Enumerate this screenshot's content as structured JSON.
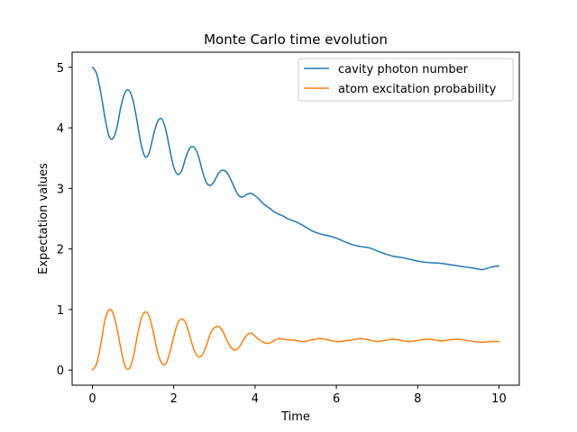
{
  "chart_data": {
    "type": "line",
    "title": "Monte Carlo time evolution",
    "xlabel": "Time",
    "ylabel": "Expectation values",
    "xlim": [
      -0.5,
      10.5
    ],
    "ylim": [
      -0.25,
      5.25
    ],
    "xticks": [
      0,
      2,
      4,
      6,
      8,
      10
    ],
    "yticks": [
      0,
      1,
      2,
      3,
      4,
      5
    ],
    "grid": false,
    "legend_position": "top-right",
    "series": [
      {
        "name": "cavity photon number",
        "color": "#1f77b4",
        "x": [
          0.0,
          0.1,
          0.2,
          0.3,
          0.4,
          0.5,
          0.6,
          0.7,
          0.8,
          0.9,
          1.0,
          1.1,
          1.2,
          1.3,
          1.4,
          1.5,
          1.6,
          1.7,
          1.8,
          1.9,
          2.0,
          2.1,
          2.2,
          2.3,
          2.4,
          2.5,
          2.6,
          2.7,
          2.8,
          2.9,
          3.0,
          3.1,
          3.2,
          3.3,
          3.4,
          3.5,
          3.6,
          3.7,
          3.8,
          3.9,
          4.0,
          4.1,
          4.2,
          4.3,
          4.4,
          4.5,
          4.6,
          4.7,
          4.8,
          5.0,
          5.2,
          5.4,
          5.6,
          5.8,
          6.0,
          6.2,
          6.4,
          6.6,
          6.8,
          7.0,
          7.2,
          7.4,
          7.6,
          7.8,
          8.0,
          8.2,
          8.4,
          8.6,
          8.8,
          9.0,
          9.2,
          9.4,
          9.6,
          9.8,
          10.0
        ],
        "values": [
          5.0,
          4.9,
          4.6,
          4.2,
          3.88,
          3.82,
          4.0,
          4.35,
          4.58,
          4.62,
          4.45,
          4.1,
          3.72,
          3.52,
          3.6,
          3.88,
          4.1,
          4.15,
          3.98,
          3.65,
          3.35,
          3.23,
          3.3,
          3.52,
          3.67,
          3.68,
          3.55,
          3.3,
          3.1,
          3.05,
          3.12,
          3.25,
          3.3,
          3.27,
          3.15,
          3.0,
          2.88,
          2.86,
          2.9,
          2.92,
          2.88,
          2.82,
          2.75,
          2.7,
          2.65,
          2.6,
          2.57,
          2.54,
          2.5,
          2.45,
          2.38,
          2.3,
          2.25,
          2.22,
          2.18,
          2.12,
          2.07,
          2.04,
          2.02,
          1.97,
          1.92,
          1.88,
          1.86,
          1.83,
          1.8,
          1.78,
          1.77,
          1.76,
          1.74,
          1.72,
          1.7,
          1.68,
          1.66,
          1.7,
          1.72
        ]
      },
      {
        "name": "atom excitation probability",
        "color": "#ff7f0e",
        "x": [
          0.0,
          0.1,
          0.2,
          0.3,
          0.4,
          0.5,
          0.6,
          0.7,
          0.8,
          0.9,
          1.0,
          1.1,
          1.2,
          1.3,
          1.4,
          1.5,
          1.6,
          1.7,
          1.8,
          1.9,
          2.0,
          2.1,
          2.2,
          2.3,
          2.4,
          2.5,
          2.6,
          2.7,
          2.8,
          2.9,
          3.0,
          3.1,
          3.2,
          3.3,
          3.4,
          3.5,
          3.6,
          3.7,
          3.8,
          3.9,
          4.0,
          4.1,
          4.2,
          4.3,
          4.4,
          4.5,
          4.6,
          4.7,
          4.8,
          5.0,
          5.2,
          5.4,
          5.6,
          5.8,
          6.0,
          6.2,
          6.4,
          6.6,
          6.8,
          7.0,
          7.2,
          7.4,
          7.6,
          7.8,
          8.0,
          8.2,
          8.4,
          8.6,
          8.8,
          9.0,
          9.2,
          9.4,
          9.6,
          9.8,
          10.0
        ],
        "values": [
          0.0,
          0.1,
          0.4,
          0.8,
          0.99,
          0.95,
          0.7,
          0.35,
          0.07,
          0.02,
          0.2,
          0.55,
          0.85,
          0.96,
          0.88,
          0.62,
          0.3,
          0.12,
          0.1,
          0.28,
          0.55,
          0.78,
          0.84,
          0.77,
          0.55,
          0.33,
          0.22,
          0.25,
          0.4,
          0.6,
          0.7,
          0.72,
          0.65,
          0.5,
          0.38,
          0.33,
          0.37,
          0.48,
          0.58,
          0.61,
          0.56,
          0.5,
          0.46,
          0.44,
          0.46,
          0.5,
          0.52,
          0.51,
          0.5,
          0.49,
          0.47,
          0.5,
          0.52,
          0.5,
          0.47,
          0.48,
          0.5,
          0.52,
          0.5,
          0.47,
          0.49,
          0.51,
          0.49,
          0.47,
          0.49,
          0.51,
          0.5,
          0.48,
          0.5,
          0.51,
          0.49,
          0.47,
          0.46,
          0.47,
          0.47
        ]
      }
    ]
  }
}
